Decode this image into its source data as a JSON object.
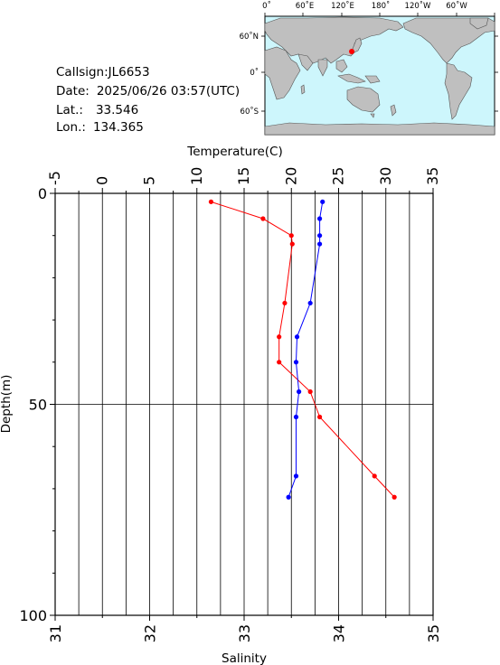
{
  "station": {
    "callsign_label": "Callsign:",
    "callsign": "JL6653",
    "date_label": "Date:",
    "date": "2025/06/26 03:57(UTC)",
    "lat_label": "Lat.:",
    "lat": "33.546",
    "lon_label": "Lon.:",
    "lon": "134.365"
  },
  "map": {
    "top_ticks": [
      "0˚",
      "60˚E",
      "120˚E",
      "180˚",
      "120˚W",
      "60˚W"
    ],
    "left_ticks": [
      "60˚N",
      "0˚",
      "60˚S"
    ],
    "ocean_color": "#cdf6fc",
    "land_color": "#bfbfbf",
    "marker_color": "#ff0000"
  },
  "colors": {
    "temperature": "#ff0000",
    "salinity": "#0000ff"
  },
  "chart_data": {
    "type": "line",
    "title": "",
    "top_axis_label": "Temperature(C)",
    "bottom_axis_label": "Salinity",
    "ylabel": "Depth(m)",
    "temperature_lim": [
      -5,
      35
    ],
    "temperature_ticks": [
      "-5",
      "0",
      "5",
      "10",
      "15",
      "20",
      "25",
      "30",
      "35"
    ],
    "salinity_lim": [
      31,
      35
    ],
    "salinity_ticks": [
      "31",
      "32",
      "33",
      "34",
      "35"
    ],
    "depth_lim": [
      0,
      100
    ],
    "depth_ticks": [
      "0",
      "50",
      "100"
    ],
    "grid": true,
    "series": [
      {
        "key": "temperature",
        "axis": "top",
        "depth": [
          2,
          6,
          10,
          12,
          26,
          34,
          40,
          47,
          53,
          67,
          72
        ],
        "values": [
          11.5,
          17.0,
          20.0,
          20.1,
          19.3,
          18.7,
          18.7,
          22.0,
          23.0,
          28.8,
          30.9
        ]
      },
      {
        "key": "salinity",
        "axis": "bottom",
        "depth": [
          2,
          6,
          10,
          12,
          26,
          34,
          40,
          47,
          53,
          67,
          72
        ],
        "values": [
          33.83,
          33.8,
          33.8,
          33.8,
          33.7,
          33.56,
          33.55,
          33.58,
          33.55,
          33.55,
          33.47
        ]
      }
    ]
  }
}
